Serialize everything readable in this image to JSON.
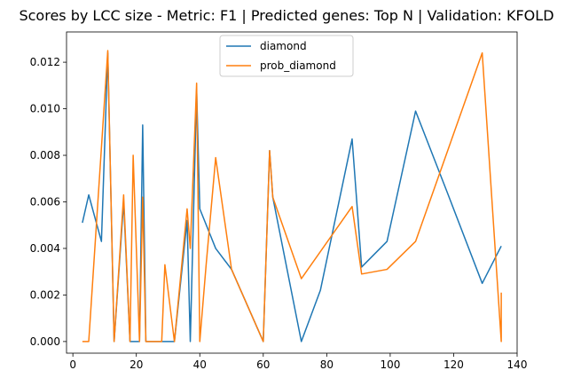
{
  "chart_data": {
    "type": "line",
    "title": "Scores by LCC size - Metric: F1 | Predicted genes: Top N | Validation: KFOLD",
    "xlabel": "",
    "ylabel": "",
    "xlim": [
      -2,
      140
    ],
    "ylim": [
      -0.0005,
      0.0133
    ],
    "xticks": [
      0,
      20,
      40,
      60,
      80,
      100,
      120,
      140
    ],
    "yticks": [
      0.0,
      0.002,
      0.004,
      0.006,
      0.008,
      0.01,
      0.012
    ],
    "ytick_labels": [
      "0.000",
      "0.002",
      "0.004",
      "0.006",
      "0.008",
      "0.010",
      "0.012"
    ],
    "grid": false,
    "legend_position": "top-center",
    "series": [
      {
        "name": "diamond",
        "color": "#1f77b4",
        "x": [
          3,
          5,
          9,
          11,
          13,
          16,
          18,
          19,
          21,
          22,
          23,
          28,
          29,
          32,
          36,
          37,
          39,
          40,
          45,
          50,
          60,
          62,
          63,
          72,
          78,
          88,
          91,
          99,
          108,
          118,
          129,
          135
        ],
        "y": [
          0.0051,
          0.0063,
          0.0043,
          0.0124,
          0.0,
          0.006,
          0.0,
          0.0,
          0.0,
          0.0093,
          0.0,
          0.0,
          0.0,
          0.0,
          0.0052,
          0.0,
          0.0108,
          0.0057,
          0.004,
          0.0031,
          0.0,
          0.0082,
          0.0062,
          0.0,
          0.0022,
          0.0087,
          0.0032,
          0.0043,
          0.0099,
          0.0064,
          0.0025,
          0.0041
        ]
      },
      {
        "name": "prob_diamond",
        "color": "#ff7f0e",
        "x": [
          3,
          5,
          11,
          13,
          16,
          18,
          19,
          21,
          22,
          23,
          28,
          29,
          32,
          36,
          37,
          39,
          40,
          42,
          45,
          50,
          60,
          62,
          63,
          72,
          88,
          91,
          99,
          108,
          129,
          135,
          135
        ],
        "y": [
          0.0,
          0.0,
          0.0125,
          0.0,
          0.0063,
          0.0,
          0.008,
          0.0,
          0.0062,
          0.0,
          0.0,
          0.0033,
          0.0,
          0.0057,
          0.004,
          0.0111,
          0.0,
          0.0033,
          0.0079,
          0.0031,
          0.0,
          0.0082,
          0.0062,
          0.0027,
          0.0058,
          0.0029,
          0.0031,
          0.0043,
          0.0124,
          0.0,
          0.0021
        ]
      }
    ]
  }
}
